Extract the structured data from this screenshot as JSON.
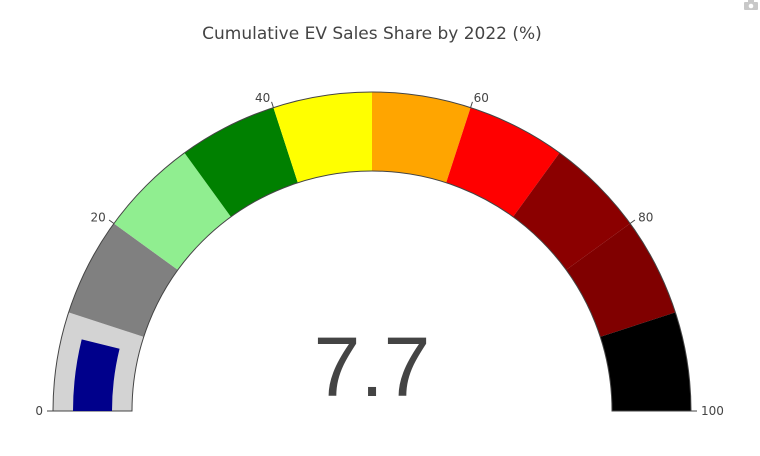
{
  "chart_data": {
    "type": "gauge",
    "title": "Cumulative EV Sales Share by 2022 (%)",
    "value": 7.7,
    "value_label": "7.7",
    "range": [
      0,
      100
    ],
    "tick_values": [
      0,
      20,
      40,
      60,
      80,
      100
    ],
    "tick_labels": [
      "0",
      "20",
      "40",
      "60",
      "80",
      "100"
    ],
    "bar_color": "#00008b",
    "steps": [
      {
        "range": [
          0,
          10
        ],
        "color": "#d3d3d3"
      },
      {
        "range": [
          10,
          20
        ],
        "color": "#808080"
      },
      {
        "range": [
          20,
          30
        ],
        "color": "#90ee90"
      },
      {
        "range": [
          30,
          40
        ],
        "color": "#008000"
      },
      {
        "range": [
          40,
          50
        ],
        "color": "#ffff00"
      },
      {
        "range": [
          50,
          60
        ],
        "color": "#ffa500"
      },
      {
        "range": [
          60,
          70
        ],
        "color": "#ff0000"
      },
      {
        "range": [
          70,
          80
        ],
        "color": "#8b0000"
      },
      {
        "range": [
          80,
          90
        ],
        "color": "#800000"
      },
      {
        "range": [
          90,
          100
        ],
        "color": "#000000"
      }
    ]
  },
  "toolbar": {
    "camera_icon": "camera-icon"
  }
}
